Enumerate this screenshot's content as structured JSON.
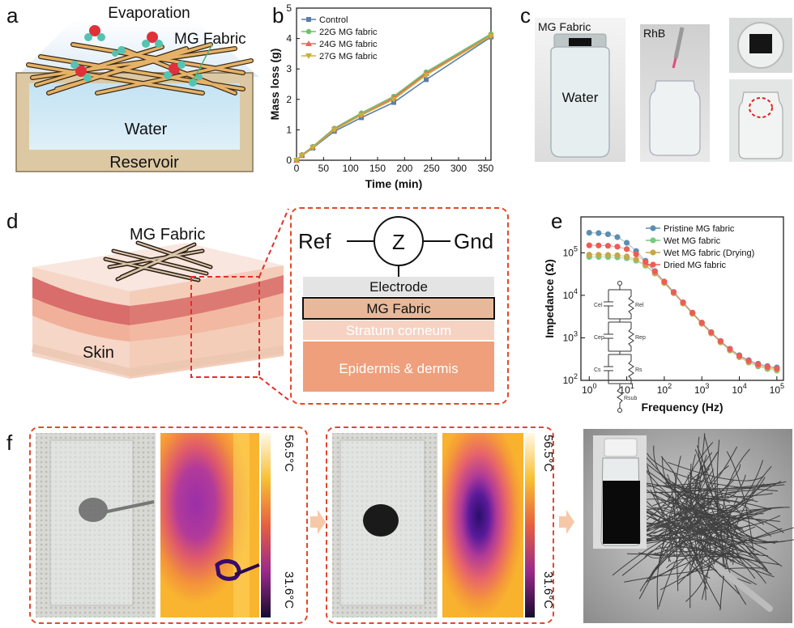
{
  "panels": {
    "a": {
      "label": "a",
      "evaporation": "Evaporation",
      "mg_fabric": "MG Fabric",
      "water": "Water",
      "reservoir": "Reservoir"
    },
    "b": {
      "label": "b"
    },
    "c": {
      "label": "c",
      "mg_fabric": "MG Fabric",
      "water": "Water",
      "rhb": "RhB"
    },
    "d": {
      "label": "d",
      "mg_fabric": "MG Fabric",
      "skin": "Skin",
      "ref": "Ref",
      "z": "Z",
      "gnd": "Gnd",
      "layers": [
        "Electrode",
        "MG Fabric",
        "Stratum corneum",
        "Epidermis & dermis"
      ]
    },
    "e": {
      "label": "e",
      "circuit_labels": [
        "Cel",
        "Rel",
        "Cep",
        "Rep",
        "Cs",
        "Rs",
        "Rsub"
      ]
    },
    "f": {
      "label": "f",
      "temp_high": "56.5°C",
      "temp_low": "31.6°C"
    }
  },
  "chart_data": [
    {
      "id": "b",
      "type": "line",
      "xlabel": "Time (min)",
      "ylabel": "Mass loss (g)",
      "xlim": [
        0,
        360
      ],
      "ylim": [
        0,
        5
      ],
      "xticks": [
        0,
        50,
        100,
        150,
        200,
        250,
        300,
        350
      ],
      "yticks": [
        0,
        1,
        2,
        3,
        4,
        5
      ],
      "legend": "top-left",
      "x": [
        0,
        10,
        30,
        70,
        120,
        180,
        240,
        360
      ],
      "series": [
        {
          "name": "Control",
          "color": "#5b7fa6",
          "marker": "square",
          "values": [
            0.0,
            0.15,
            0.4,
            0.95,
            1.4,
            1.9,
            2.65,
            4.05
          ]
        },
        {
          "name": "22G MG fabric",
          "color": "#6cc26c",
          "marker": "circle",
          "values": [
            0.0,
            0.18,
            0.45,
            1.05,
            1.55,
            2.1,
            2.9,
            4.15
          ]
        },
        {
          "name": "24G MG fabric",
          "color": "#e9655e",
          "marker": "triangle-up",
          "values": [
            0.0,
            0.17,
            0.43,
            1.02,
            1.5,
            2.05,
            2.85,
            4.1
          ]
        },
        {
          "name": "27G MG fabric",
          "color": "#c8b03a",
          "marker": "triangle-down",
          "values": [
            0.0,
            0.16,
            0.42,
            1.0,
            1.48,
            2.0,
            2.8,
            4.08
          ]
        }
      ]
    },
    {
      "id": "e",
      "type": "scatter",
      "xlabel": "Frequency (Hz)",
      "ylabel": "Impedance (Ω)",
      "xscale": "log",
      "yscale": "log",
      "xlim": [
        0.6,
        150000
      ],
      "ylim": [
        100,
        700000
      ],
      "xticks": [
        {
          "v": 1,
          "l": "10^0"
        },
        {
          "v": 10,
          "l": "10^1"
        },
        {
          "v": 100,
          "l": "10^2"
        },
        {
          "v": 1000,
          "l": "10^3"
        },
        {
          "v": 10000,
          "l": "10^4"
        },
        {
          "v": 100000,
          "l": "10^5"
        }
      ],
      "yticks": [
        {
          "v": 100,
          "l": "10^2"
        },
        {
          "v": 1000,
          "l": "10^3"
        },
        {
          "v": 10000,
          "l": "10^4"
        },
        {
          "v": 100000,
          "l": "10^5"
        }
      ],
      "legend": "top-right",
      "series": [
        {
          "name": "Pristine MG fabric",
          "color": "#5b8fb0",
          "model": {
            "r": 180,
            "rp": 300000,
            "fc": 7
          }
        },
        {
          "name": "Wet MG fabric",
          "color": "#79c97f",
          "model": {
            "r": 150,
            "rp": 80000,
            "fc": 25
          }
        },
        {
          "name": "Wet MG fabric (Drying)",
          "color": "#c4a848",
          "model": {
            "r": 160,
            "rp": 90000,
            "fc": 22
          }
        },
        {
          "name": "Dried MG fabric",
          "color": "#ef5b55",
          "model": {
            "r": 170,
            "rp": 150000,
            "fc": 14
          }
        }
      ]
    }
  ]
}
